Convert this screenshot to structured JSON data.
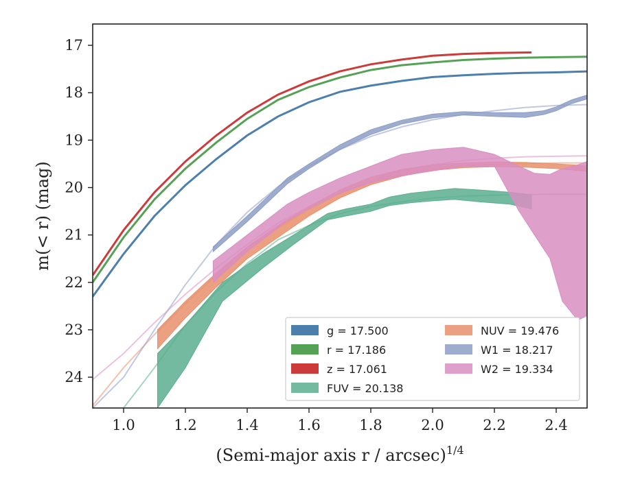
{
  "chart_data": {
    "type": "line",
    "xlabel": "(Semi-major axis r / arcsec)",
    "xlabel_superscript": "1/4",
    "ylabel": "m(< r) (mag)",
    "xlim": [
      0.9,
      2.5
    ],
    "ylim": [
      24.65,
      16.55
    ],
    "y_inverted": true,
    "x_ticks": [
      1.0,
      1.2,
      1.4,
      1.6,
      1.8,
      2.0,
      2.2,
      2.4
    ],
    "x_tick_labels": [
      "1.0",
      "1.2",
      "1.4",
      "1.6",
      "1.8",
      "2.0",
      "2.2",
      "2.4"
    ],
    "y_ticks": [
      17,
      18,
      19,
      20,
      21,
      22,
      23,
      24
    ],
    "y_tick_labels": [
      "17",
      "18",
      "19",
      "20",
      "21",
      "22",
      "23",
      "24"
    ],
    "grid": false,
    "legend_position": "lower-right",
    "series": [
      {
        "name": "g",
        "legend_label": "g = 17.500",
        "color": "#4c7fab",
        "kind": "line",
        "x": [
          0.9,
          1.0,
          1.1,
          1.2,
          1.3,
          1.4,
          1.5,
          1.6,
          1.7,
          1.8,
          1.9,
          2.0,
          2.1,
          2.2,
          2.3,
          2.4,
          2.5
        ],
        "y": [
          22.3,
          21.4,
          20.6,
          19.95,
          19.4,
          18.9,
          18.5,
          18.2,
          17.98,
          17.85,
          17.75,
          17.67,
          17.63,
          17.6,
          17.58,
          17.57,
          17.55
        ]
      },
      {
        "name": "r",
        "legend_label": "r = 17.186",
        "color": "#55a155",
        "kind": "line",
        "x": [
          0.9,
          1.0,
          1.1,
          1.2,
          1.3,
          1.4,
          1.5,
          1.6,
          1.7,
          1.8,
          1.9,
          2.0,
          2.1,
          2.2,
          2.3,
          2.4,
          2.5
        ],
        "y": [
          22.0,
          21.05,
          20.25,
          19.6,
          19.05,
          18.55,
          18.15,
          17.88,
          17.68,
          17.52,
          17.42,
          17.36,
          17.31,
          17.28,
          17.26,
          17.25,
          17.24
        ]
      },
      {
        "name": "z",
        "legend_label": "z = 17.061",
        "color": "#cc3a3a",
        "kind": "line",
        "x": [
          0.9,
          1.0,
          1.1,
          1.2,
          1.3,
          1.4,
          1.5,
          1.6,
          1.7,
          1.8,
          1.9,
          2.0,
          2.1,
          2.2,
          2.32
        ],
        "y": [
          21.85,
          20.9,
          20.1,
          19.45,
          18.9,
          18.42,
          18.04,
          17.76,
          17.55,
          17.4,
          17.3,
          17.22,
          17.18,
          17.16,
          17.15
        ]
      },
      {
        "name": "FUV",
        "legend_label": "FUV = 20.138",
        "color": "#5aae8f",
        "kind": "band",
        "x": [
          1.11,
          1.2,
          1.32,
          1.45,
          1.55,
          1.66,
          1.72,
          1.8,
          1.86,
          1.93,
          2.0,
          2.07,
          2.15,
          2.25,
          2.32
        ],
        "y_lo": [
          23.5,
          22.9,
          22.0,
          21.4,
          21.0,
          20.55,
          20.45,
          20.35,
          20.2,
          20.12,
          20.07,
          20.02,
          20.05,
          20.1,
          20.15
        ],
        "y_hi": [
          24.65,
          23.8,
          22.4,
          21.7,
          21.2,
          20.68,
          20.6,
          20.5,
          20.38,
          20.32,
          20.28,
          20.25,
          20.3,
          20.35,
          20.45
        ],
        "model_x": [
          1.0,
          1.1,
          1.2,
          1.3,
          1.4,
          1.5,
          1.6,
          1.7,
          1.8,
          1.9,
          2.0,
          2.1,
          2.2,
          2.3,
          2.4,
          2.5
        ],
        "model_y": [
          24.65,
          23.8,
          22.9,
          22.2,
          21.6,
          21.1,
          20.8,
          20.55,
          20.4,
          20.3,
          20.22,
          20.18,
          20.16,
          20.15,
          20.14,
          20.14
        ]
      },
      {
        "name": "NUV",
        "legend_label": "NUV = 19.476",
        "color": "#e8906b",
        "kind": "band",
        "x": [
          1.11,
          1.2,
          1.3,
          1.4,
          1.5,
          1.6,
          1.7,
          1.8,
          1.9,
          2.0,
          2.1,
          2.2,
          2.3,
          2.4,
          2.5
        ],
        "y_lo": [
          23.0,
          22.4,
          21.8,
          21.25,
          20.8,
          20.4,
          20.05,
          19.78,
          19.62,
          19.52,
          19.48,
          19.46,
          19.47,
          19.5,
          19.54
        ],
        "y_hi": [
          23.4,
          22.75,
          22.1,
          21.5,
          21.05,
          20.6,
          20.22,
          19.94,
          19.76,
          19.64,
          19.58,
          19.56,
          19.57,
          19.6,
          19.66
        ],
        "model_x": [
          0.9,
          1.0,
          1.1,
          1.2,
          1.3,
          1.4,
          1.5,
          1.6,
          1.7,
          1.8,
          1.9,
          2.0,
          2.1,
          2.2,
          2.3,
          2.4,
          2.5
        ],
        "model_y": [
          24.6,
          23.8,
          23.1,
          22.45,
          21.85,
          21.3,
          20.85,
          20.45,
          20.12,
          19.88,
          19.72,
          19.62,
          19.55,
          19.51,
          19.49,
          19.48,
          19.48
        ]
      },
      {
        "name": "W1",
        "legend_label": "W1 = 18.217",
        "color": "#8d9dc6",
        "kind": "band",
        "x": [
          1.29,
          1.4,
          1.53,
          1.6,
          1.7,
          1.8,
          1.9,
          2.0,
          2.1,
          2.2,
          2.3,
          2.36,
          2.4,
          2.45,
          2.5
        ],
        "y_lo": [
          21.25,
          20.6,
          19.8,
          19.5,
          19.1,
          18.78,
          18.58,
          18.45,
          18.4,
          18.42,
          18.42,
          18.38,
          18.3,
          18.15,
          18.05
        ],
        "y_hi": [
          21.35,
          20.72,
          19.92,
          19.6,
          19.2,
          18.88,
          18.66,
          18.53,
          18.47,
          18.5,
          18.52,
          18.46,
          18.38,
          18.23,
          18.13
        ],
        "model_x": [
          0.9,
          1.0,
          1.1,
          1.2,
          1.3,
          1.4,
          1.5,
          1.6,
          1.7,
          1.8,
          1.9,
          2.0,
          2.1,
          2.2,
          2.3,
          2.4,
          2.5
        ],
        "model_y": [
          24.65,
          24.0,
          23.0,
          22.05,
          21.2,
          20.52,
          19.98,
          19.55,
          19.2,
          18.92,
          18.72,
          18.57,
          18.46,
          18.38,
          18.31,
          18.27,
          18.25
        ]
      },
      {
        "name": "W2",
        "legend_label": "W2 = 19.334",
        "color": "#d98ec2",
        "kind": "band",
        "x": [
          1.29,
          1.4,
          1.53,
          1.6,
          1.7,
          1.8,
          1.9,
          2.0,
          2.1,
          2.2,
          2.28,
          2.33,
          2.38,
          2.42,
          2.47,
          2.5
        ],
        "y_lo": [
          21.55,
          21.0,
          20.35,
          20.1,
          19.8,
          19.55,
          19.3,
          19.2,
          19.15,
          19.3,
          19.55,
          19.7,
          19.72,
          19.6,
          19.52,
          19.45
        ],
        "y_hi": [
          22.0,
          21.35,
          20.7,
          20.45,
          20.12,
          19.9,
          19.75,
          19.65,
          19.55,
          19.55,
          20.5,
          21.0,
          21.5,
          22.4,
          22.8,
          22.7
        ],
        "model_x": [
          0.9,
          1.0,
          1.1,
          1.2,
          1.3,
          1.4,
          1.5,
          1.6,
          1.7,
          1.8,
          1.9,
          2.0,
          2.1,
          2.2,
          2.3,
          2.4,
          2.5
        ],
        "model_y": [
          24.05,
          23.5,
          22.85,
          22.25,
          21.7,
          21.2,
          20.75,
          20.4,
          20.1,
          19.85,
          19.65,
          19.52,
          19.43,
          19.38,
          19.35,
          19.34,
          19.33
        ]
      }
    ]
  }
}
